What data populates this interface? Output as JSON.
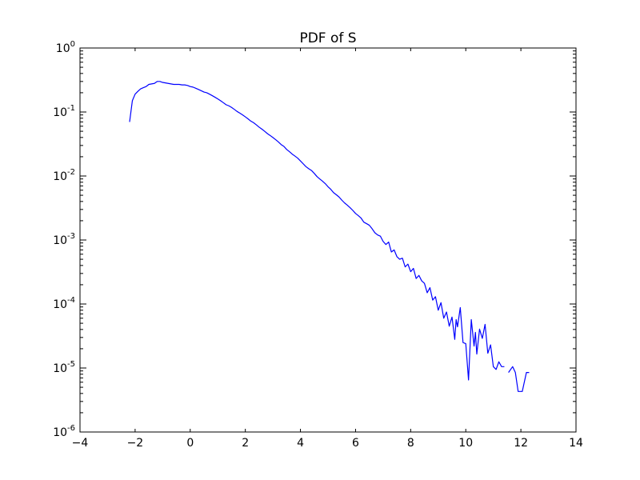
{
  "chart_data": {
    "type": "line",
    "title": "PDF of S",
    "xlabel": "",
    "ylabel": "",
    "xlim": [
      -4,
      14
    ],
    "ylim": [
      1e-06,
      1
    ],
    "yscale": "log",
    "grid": false,
    "x_ticks": [
      -4,
      -2,
      0,
      2,
      4,
      6,
      8,
      10,
      12,
      14
    ],
    "x_tick_labels": [
      "−4",
      "−2",
      "0",
      "2",
      "4",
      "6",
      "8",
      "10",
      "12",
      "14"
    ],
    "y_ticks": [
      {
        "value": 1,
        "base": "10",
        "exp": "0"
      },
      {
        "value": 0.1,
        "base": "10",
        "exp": "-1"
      },
      {
        "value": 0.01,
        "base": "10",
        "exp": "-2"
      },
      {
        "value": 0.001,
        "base": "10",
        "exp": "-3"
      },
      {
        "value": 0.0001,
        "base": "10",
        "exp": "-4"
      },
      {
        "value": 1e-05,
        "base": "10",
        "exp": "-5"
      },
      {
        "value": 1e-06,
        "base": "10",
        "exp": "-6"
      }
    ],
    "series": [
      {
        "color": "#0000ff",
        "segments": [
          [
            [
              -2.2,
              0.07
            ],
            [
              -2.1,
              0.15
            ],
            [
              -2.0,
              0.19
            ],
            [
              -1.9,
              0.21
            ],
            [
              -1.8,
              0.23
            ],
            [
              -1.7,
              0.24
            ],
            [
              -1.6,
              0.25
            ],
            [
              -1.5,
              0.27
            ],
            [
              -1.4,
              0.275
            ],
            [
              -1.3,
              0.28
            ],
            [
              -1.2,
              0.3
            ],
            [
              -1.1,
              0.3
            ],
            [
              -1.0,
              0.29
            ],
            [
              -0.9,
              0.285
            ],
            [
              -0.8,
              0.28
            ],
            [
              -0.7,
              0.275
            ],
            [
              -0.6,
              0.27
            ],
            [
              -0.5,
              0.27
            ],
            [
              -0.4,
              0.27
            ],
            [
              -0.3,
              0.265
            ],
            [
              -0.2,
              0.265
            ],
            [
              -0.1,
              0.26
            ],
            [
              0.0,
              0.25
            ],
            [
              0.1,
              0.245
            ],
            [
              0.2,
              0.235
            ],
            [
              0.3,
              0.225
            ],
            [
              0.4,
              0.215
            ],
            [
              0.5,
              0.205
            ],
            [
              0.6,
              0.2
            ],
            [
              0.7,
              0.19
            ],
            [
              0.8,
              0.18
            ],
            [
              0.9,
              0.17
            ],
            [
              1.0,
              0.16
            ],
            [
              1.1,
              0.15
            ],
            [
              1.2,
              0.14
            ],
            [
              1.3,
              0.13
            ],
            [
              1.4,
              0.125
            ],
            [
              1.5,
              0.118
            ],
            [
              1.6,
              0.11
            ],
            [
              1.7,
              0.102
            ],
            [
              1.8,
              0.096
            ],
            [
              1.9,
              0.09
            ],
            [
              2.0,
              0.084
            ],
            [
              2.1,
              0.078
            ],
            [
              2.2,
              0.072
            ],
            [
              2.3,
              0.068
            ],
            [
              2.4,
              0.063
            ],
            [
              2.5,
              0.058
            ],
            [
              2.6,
              0.054
            ],
            [
              2.7,
              0.05
            ],
            [
              2.8,
              0.046
            ],
            [
              2.9,
              0.043
            ],
            [
              3.0,
              0.04
            ],
            [
              3.1,
              0.037
            ],
            [
              3.2,
              0.034
            ],
            [
              3.3,
              0.031
            ],
            [
              3.4,
              0.029
            ],
            [
              3.5,
              0.026
            ],
            [
              3.6,
              0.024
            ],
            [
              3.7,
              0.022
            ],
            [
              3.8,
              0.0205
            ],
            [
              3.9,
              0.019
            ],
            [
              4.0,
              0.0172
            ],
            [
              4.1,
              0.0155
            ],
            [
              4.2,
              0.014
            ],
            [
              4.3,
              0.013
            ],
            [
              4.4,
              0.0122
            ],
            [
              4.5,
              0.011
            ],
            [
              4.6,
              0.0098
            ],
            [
              4.7,
              0.009
            ],
            [
              4.8,
              0.0083
            ],
            [
              4.9,
              0.0076
            ],
            [
              5.0,
              0.0068
            ],
            [
              5.1,
              0.0062
            ],
            [
              5.2,
              0.0055
            ],
            [
              5.3,
              0.0051
            ],
            [
              5.4,
              0.0047
            ],
            [
              5.5,
              0.0042
            ],
            [
              5.6,
              0.0038
            ],
            [
              5.7,
              0.0035
            ],
            [
              5.8,
              0.0032
            ],
            [
              5.9,
              0.0029
            ],
            [
              6.0,
              0.0026
            ],
            [
              6.1,
              0.0024
            ],
            [
              6.2,
              0.0022
            ],
            [
              6.3,
              0.0019
            ],
            [
              6.4,
              0.0018
            ],
            [
              6.5,
              0.0017
            ],
            [
              6.6,
              0.0015
            ],
            [
              6.7,
              0.0013
            ],
            [
              6.8,
              0.0012
            ],
            [
              6.9,
              0.00115
            ],
            [
              7.0,
              0.00095
            ],
            [
              7.1,
              0.00085
            ],
            [
              7.2,
              0.00093
            ],
            [
              7.3,
              0.00065
            ],
            [
              7.4,
              0.0007
            ],
            [
              7.5,
              0.00055
            ],
            [
              7.6,
              0.0005
            ],
            [
              7.7,
              0.00052
            ],
            [
              7.8,
              0.00038
            ],
            [
              7.9,
              0.00042
            ],
            [
              8.0,
              0.00032
            ],
            [
              8.1,
              0.00036
            ],
            [
              8.2,
              0.00025
            ],
            [
              8.3,
              0.00028
            ],
            [
              8.4,
              0.00023
            ],
            [
              8.5,
              0.00021
            ],
            [
              8.6,
              0.00015
            ],
            [
              8.7,
              0.00018
            ],
            [
              8.8,
              0.000115
            ],
            [
              8.9,
              0.00013
            ],
            [
              9.0,
              8e-05
            ],
            [
              9.1,
              0.000105
            ],
            [
              9.2,
              6e-05
            ],
            [
              9.3,
              7.5e-05
            ],
            [
              9.4,
              4.5e-05
            ],
            [
              9.5,
              6.25e-05
            ],
            [
              9.6,
              2.8e-05
            ],
            [
              9.65,
              5.7e-05
            ],
            [
              9.7,
              4.4e-05
            ],
            [
              9.8,
              8.8e-05
            ],
            [
              9.9,
              2.5e-05
            ],
            [
              10.0,
              2.4e-05
            ],
            [
              10.1,
              6.5e-06
            ],
            [
              10.2,
              5.7e-05
            ],
            [
              10.3,
              2.2e-05
            ],
            [
              10.35,
              3.6e-05
            ],
            [
              10.4,
              1.65e-05
            ],
            [
              10.5,
              4.05e-05
            ],
            [
              10.6,
              2.9e-05
            ],
            [
              10.7,
              4.8e-05
            ],
            [
              10.8,
              1.7e-05
            ],
            [
              10.9,
              2.3e-05
            ],
            [
              11.0,
              1.05e-05
            ],
            [
              11.1,
              9.5e-06
            ],
            [
              11.2,
              1.25e-05
            ],
            [
              11.3,
              1.05e-05
            ],
            [
              11.4,
              1.05e-05
            ]
          ],
          [
            [
              11.55,
              8.5e-06
            ],
            [
              11.7,
              1.05e-05
            ],
            [
              11.8,
              8.5e-06
            ],
            [
              11.9,
              4.3e-06
            ],
            [
              12.05,
              4.3e-06
            ],
            [
              12.2,
              8.5e-06
            ],
            [
              12.3,
              8.5e-06
            ]
          ]
        ]
      }
    ]
  }
}
